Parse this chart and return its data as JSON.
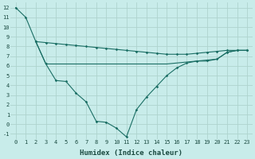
{
  "xlabel": "Humidex (Indice chaleur)",
  "background_color": "#c8ecea",
  "grid_color": "#aed4ce",
  "line_color": "#1a6e64",
  "xlim": [
    -0.5,
    23.5
  ],
  "ylim": [
    -1.5,
    12.5
  ],
  "xticks": [
    0,
    1,
    2,
    3,
    4,
    5,
    6,
    7,
    8,
    9,
    10,
    11,
    12,
    13,
    14,
    15,
    16,
    17,
    18,
    19,
    20,
    21,
    22,
    23
  ],
  "yticks": [
    -1,
    0,
    1,
    2,
    3,
    4,
    5,
    6,
    7,
    8,
    9,
    10,
    11,
    12
  ],
  "line1_x": [
    0,
    1,
    2,
    3,
    4,
    5,
    6,
    7,
    8,
    9,
    10,
    11,
    12,
    13,
    14,
    15,
    16,
    17,
    18,
    19,
    20,
    21,
    22,
    23
  ],
  "line1_y": [
    12,
    11,
    8.5,
    8.4,
    8.3,
    8.2,
    8.1,
    8.0,
    7.9,
    7.8,
    7.7,
    7.6,
    7.5,
    7.4,
    7.3,
    7.2,
    7.2,
    7.2,
    7.3,
    7.4,
    7.5,
    7.6,
    7.6,
    7.6
  ],
  "line2_x": [
    2,
    3,
    4,
    5,
    6,
    7,
    8,
    9,
    10,
    11,
    12,
    13,
    14,
    15,
    16,
    17,
    18,
    19,
    20,
    21,
    22,
    23
  ],
  "line2_y": [
    8.5,
    6.2,
    4.5,
    4.4,
    3.2,
    2.3,
    0.3,
    0.2,
    -0.4,
    -1.3,
    1.5,
    2.8,
    3.9,
    5.0,
    5.8,
    6.3,
    6.5,
    6.6,
    6.7,
    7.4,
    7.6,
    7.6
  ],
  "line3_x": [
    2,
    3,
    4,
    5,
    6,
    7,
    8,
    9,
    10,
    11,
    12,
    13,
    14,
    15,
    16,
    17,
    18,
    19,
    20,
    21,
    22,
    23
  ],
  "line3_y": [
    8.5,
    6.2,
    6.2,
    6.2,
    6.2,
    6.2,
    6.2,
    6.2,
    6.2,
    6.2,
    6.2,
    6.2,
    6.2,
    6.2,
    6.3,
    6.4,
    6.5,
    6.5,
    6.7,
    7.4,
    7.6,
    7.6
  ]
}
